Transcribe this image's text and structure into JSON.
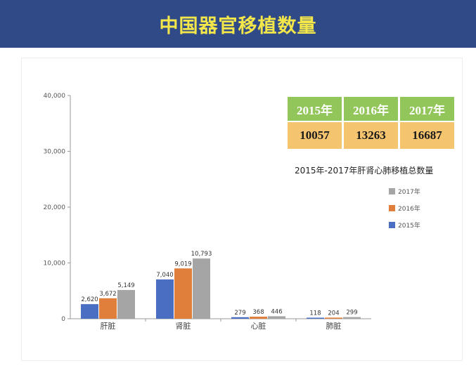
{
  "header": {
    "title": "中国器官移植数量"
  },
  "summary": {
    "years": [
      "2015年",
      "2016年",
      "2017年"
    ],
    "totals": [
      "10057",
      "13263",
      "16687"
    ],
    "caption": "2015年-2017年肝肾心肺移植总数量"
  },
  "colors": {
    "2015年": "#4a6fc2",
    "2016年": "#e07e3c",
    "2017年": "#a5a5a5"
  },
  "chart_data": {
    "type": "bar",
    "title": "",
    "xlabel": "",
    "ylabel": "",
    "categories": [
      "肝脏",
      "肾脏",
      "心脏",
      "肺脏"
    ],
    "series": [
      {
        "name": "2015年",
        "values": [
          2620,
          7040,
          279,
          118
        ],
        "labels": [
          "2,620",
          "7,040",
          "279",
          "118"
        ]
      },
      {
        "name": "2016年",
        "values": [
          3672,
          9019,
          368,
          204
        ],
        "labels": [
          "3,672",
          "9,019",
          "368",
          "204"
        ]
      },
      {
        "name": "2017年",
        "values": [
          5149,
          10793,
          446,
          299
        ],
        "labels": [
          "5,149",
          "10,793",
          "446",
          "299"
        ]
      }
    ],
    "ylim": [
      0,
      40000
    ],
    "yticks": [
      0,
      10000,
      20000,
      30000,
      40000
    ],
    "ytick_labels": [
      "0",
      "10,000",
      "20,000",
      "30,000",
      "40,000"
    ],
    "legend_order": [
      "2017年",
      "2016年",
      "2015年"
    ],
    "legend_position": "right",
    "grid": false
  }
}
